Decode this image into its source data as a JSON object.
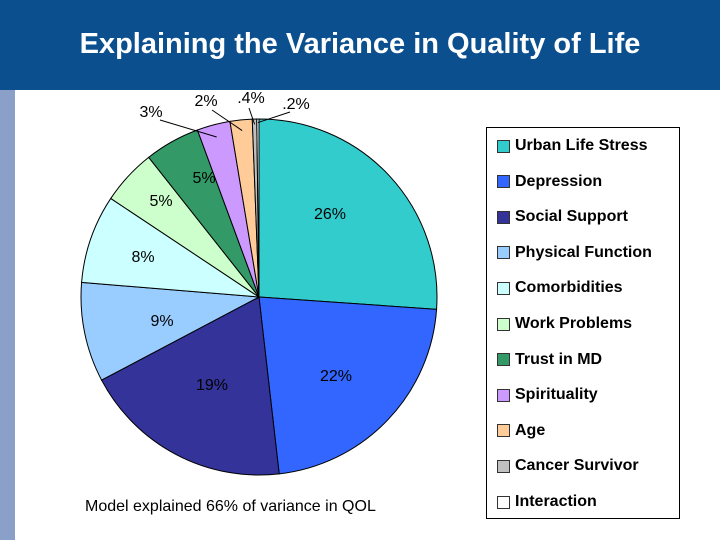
{
  "title": "Explaining the Variance in Quality of Life",
  "footnote": "Model explained 66% of variance in QOL",
  "chart_data": {
    "type": "pie",
    "title": "Explaining the Variance in Quality of Life",
    "legend_position": "right",
    "slices": [
      {
        "name": "Urban Life Stress",
        "value": 26,
        "label": "26%",
        "color": "#33cccc"
      },
      {
        "name": "Depression",
        "value": 22,
        "label": "22%",
        "color": "#3366ff"
      },
      {
        "name": "Social Support",
        "value": 19,
        "label": "19%",
        "color": "#333399"
      },
      {
        "name": "Physical Function",
        "value": 9,
        "label": "9%",
        "color": "#99ccff"
      },
      {
        "name": "Comorbidities",
        "value": 8,
        "label": "8%",
        "color": "#ccffff"
      },
      {
        "name": "Work Problems",
        "value": 5,
        "label": "5%",
        "color": "#ccffcc"
      },
      {
        "name": "Trust in MD",
        "value": 5,
        "label": "5%",
        "color": "#339966"
      },
      {
        "name": "Spirituality",
        "value": 3,
        "label": "3%",
        "color": "#cc99ff"
      },
      {
        "name": "Age",
        "value": 2,
        "label": "2%",
        "color": "#ffcc99"
      },
      {
        "name": "Cancer Survivor",
        "value": 0.4,
        "label": ".4%",
        "color": "#c0c0c0"
      },
      {
        "name": "Interaction",
        "value": 0.2,
        "label": ".2%",
        "color": "#ffffff"
      }
    ]
  }
}
